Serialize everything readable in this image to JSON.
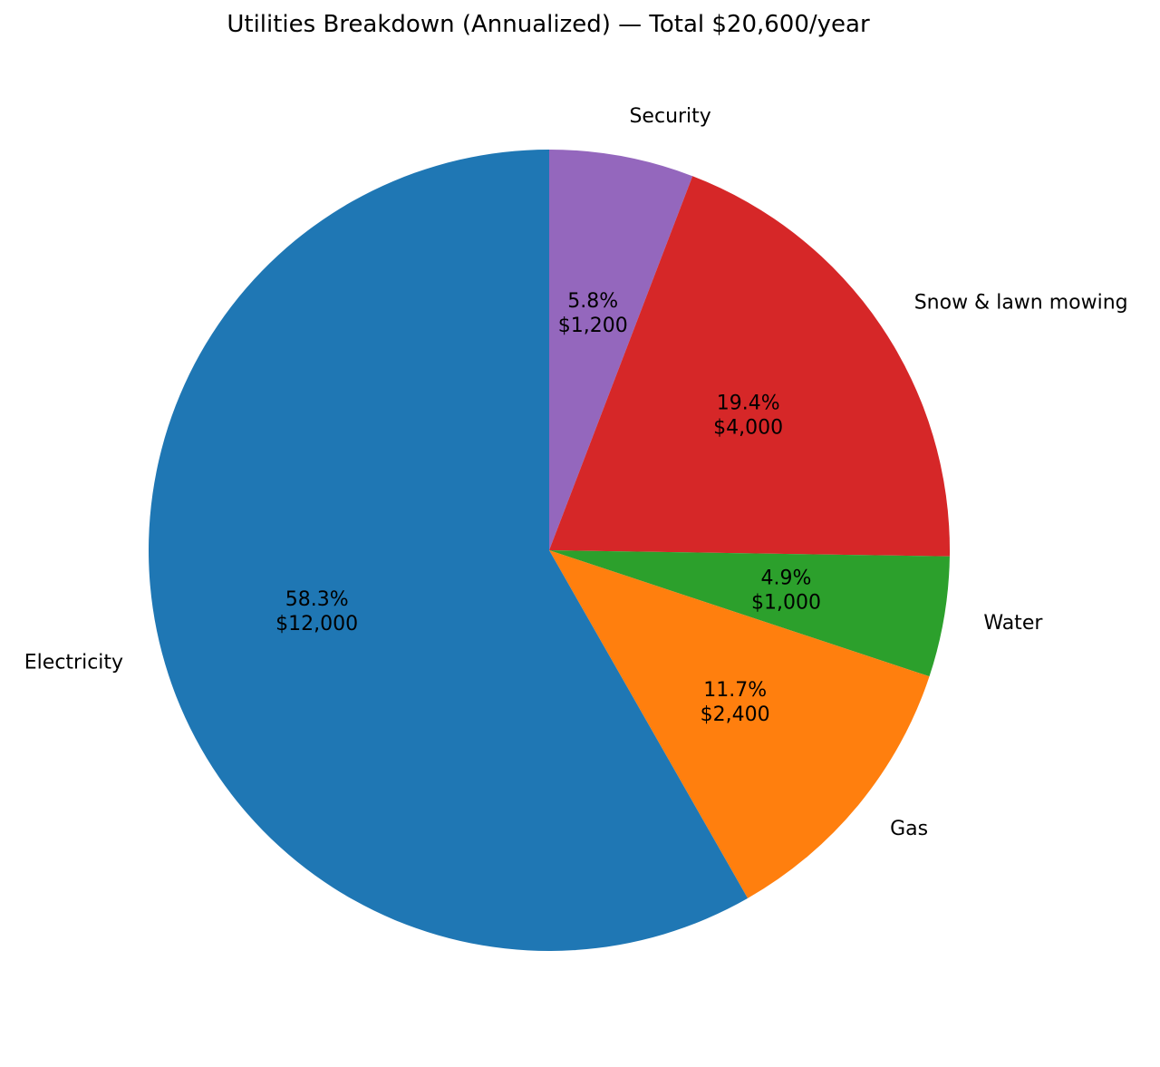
{
  "chart_data": {
    "type": "pie",
    "title": "Utilities Breakdown (Annualized) — Total $20,600/year",
    "start_angle_deg": 90,
    "direction": "clockwise",
    "slices": [
      {
        "label": "Security",
        "value": 1200,
        "percent_label": "5.8%",
        "value_label": "$1,200",
        "color": "#9467bd"
      },
      {
        "label": "Snow & lawn mowing",
        "value": 4000,
        "percent_label": "19.4%",
        "value_label": "$4,000",
        "color": "#d62728"
      },
      {
        "label": "Water",
        "value": 1000,
        "percent_label": "4.9%",
        "value_label": "$1,000",
        "color": "#2ca02c"
      },
      {
        "label": "Gas",
        "value": 2400,
        "percent_label": "11.7%",
        "value_label": "$2,400",
        "color": "#ff7f0e"
      },
      {
        "label": "Electricity",
        "value": 12000,
        "percent_label": "58.3%",
        "value_label": "$12,000",
        "color": "#1f77b4"
      }
    ]
  }
}
